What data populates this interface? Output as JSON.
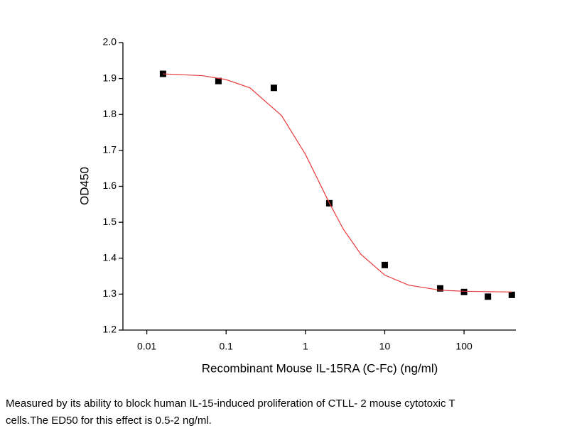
{
  "chart_data": {
    "type": "scatter",
    "x_label": "Recombinant Mouse IL-15RA (C-Fc) (ng/ml)",
    "y_label": "OD450",
    "x_scale": "log",
    "xlim": [
      0.005,
      450
    ],
    "xticks": [
      0.01,
      0.1,
      1,
      10,
      100
    ],
    "ylim": [
      1.2,
      2.0
    ],
    "yticks": [
      {
        "value": 1.2,
        "label": "1.2"
      },
      {
        "value": 1.3,
        "label": "1.3"
      },
      {
        "value": 1.4,
        "label": "1.4"
      },
      {
        "value": 1.5,
        "label": "1.5"
      },
      {
        "value": 1.6,
        "label": "1.6"
      },
      {
        "value": 1.7,
        "label": "1.7"
      },
      {
        "value": 1.8,
        "label": "1.8"
      },
      {
        "value": 1.9,
        "label": "1.9"
      },
      {
        "value": 2,
        "label": "2.0"
      }
    ],
    "series": [
      {
        "type": "scatter",
        "color": "#000000",
        "x": [
          0.016,
          0.08,
          0.4,
          2,
          10,
          50,
          100,
          200,
          400
        ],
        "values": [
          1.913,
          1.893,
          1.874,
          1.553,
          1.381,
          1.316,
          1.306,
          1.293,
          1.298
        ]
      },
      {
        "type": "line",
        "color": "#e8393a",
        "x": [
          0.016,
          0.05,
          0.1,
          0.2,
          0.5,
          1,
          1.5,
          2,
          3,
          5,
          10,
          20,
          50,
          100,
          400
        ],
        "values": [
          1.913,
          1.908,
          1.897,
          1.874,
          1.797,
          1.689,
          1.61,
          1.554,
          1.481,
          1.411,
          1.353,
          1.325,
          1.311,
          1.308,
          1.306
        ]
      }
    ]
  },
  "caption": [
    "Measured by its ability to block human IL-15-induced proliferation of CTLL- 2 mouse cytotoxic T",
    "cells.The ED50 for this effect is 0.5-2 ng/ml."
  ]
}
